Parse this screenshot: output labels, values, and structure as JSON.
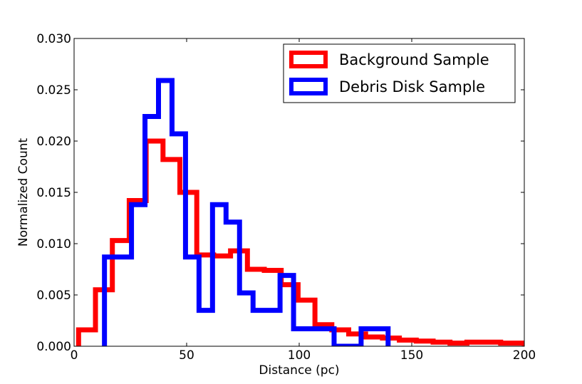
{
  "chart_data": {
    "type": "histogram-step",
    "xlabel": "Distance (pc)",
    "ylabel": "Normalized Count",
    "xlim": [
      0,
      200
    ],
    "ylim": [
      0,
      0.03
    ],
    "xticks": [
      0,
      50,
      100,
      150,
      200
    ],
    "xtick_labels": [
      "0",
      "50",
      "100",
      "150",
      "200"
    ],
    "yticks": [
      0,
      0.005,
      0.01,
      0.015,
      0.02,
      0.025,
      0.03
    ],
    "ytick_labels": [
      "0.000",
      "0.005",
      "0.010",
      "0.015",
      "0.020",
      "0.025",
      "0.030"
    ],
    "grid": false,
    "legend_position": "top-right",
    "series": [
      {
        "name": "Background Sample",
        "color": "#ff0000",
        "bin_edges": [
          2,
          9.5,
          17,
          24.5,
          32,
          39.5,
          47,
          54.5,
          62,
          69.5,
          77,
          84.5,
          92,
          99.5,
          107,
          114.5,
          122,
          129.5,
          137,
          144.5,
          152,
          159.5,
          167,
          174.5,
          182,
          189.5,
          197,
          200
        ],
        "values": [
          0.0016,
          0.0055,
          0.0103,
          0.0142,
          0.02,
          0.0182,
          0.015,
          0.0089,
          0.0088,
          0.0093,
          0.0075,
          0.0074,
          0.006,
          0.0045,
          0.0021,
          0.0016,
          0.0012,
          0.0009,
          0.0008,
          0.0006,
          0.0005,
          0.0004,
          0.0003,
          0.0004,
          0.0004,
          0.0003,
          0.0003
        ]
      },
      {
        "name": "Debris Disk Sample",
        "color": "#0000ff",
        "bin_edges": [
          13.5,
          25.5,
          31.5,
          37.5,
          43.5,
          49.5,
          55.5,
          61.5,
          67.5,
          73.5,
          79.5,
          85.5,
          91.5,
          97.5,
          103.5,
          109.5,
          115.5,
          121.5,
          127.5,
          133.5,
          139.5
        ],
        "values": [
          0.0087,
          0.0138,
          0.0224,
          0.0259,
          0.0207,
          0.0087,
          0.0035,
          0.0138,
          0.0121,
          0.0052,
          0.0035,
          0.0035,
          0.0069,
          0.0017,
          0.0017,
          0.0017,
          0,
          0,
          0.0017,
          0.0017
        ]
      }
    ]
  }
}
